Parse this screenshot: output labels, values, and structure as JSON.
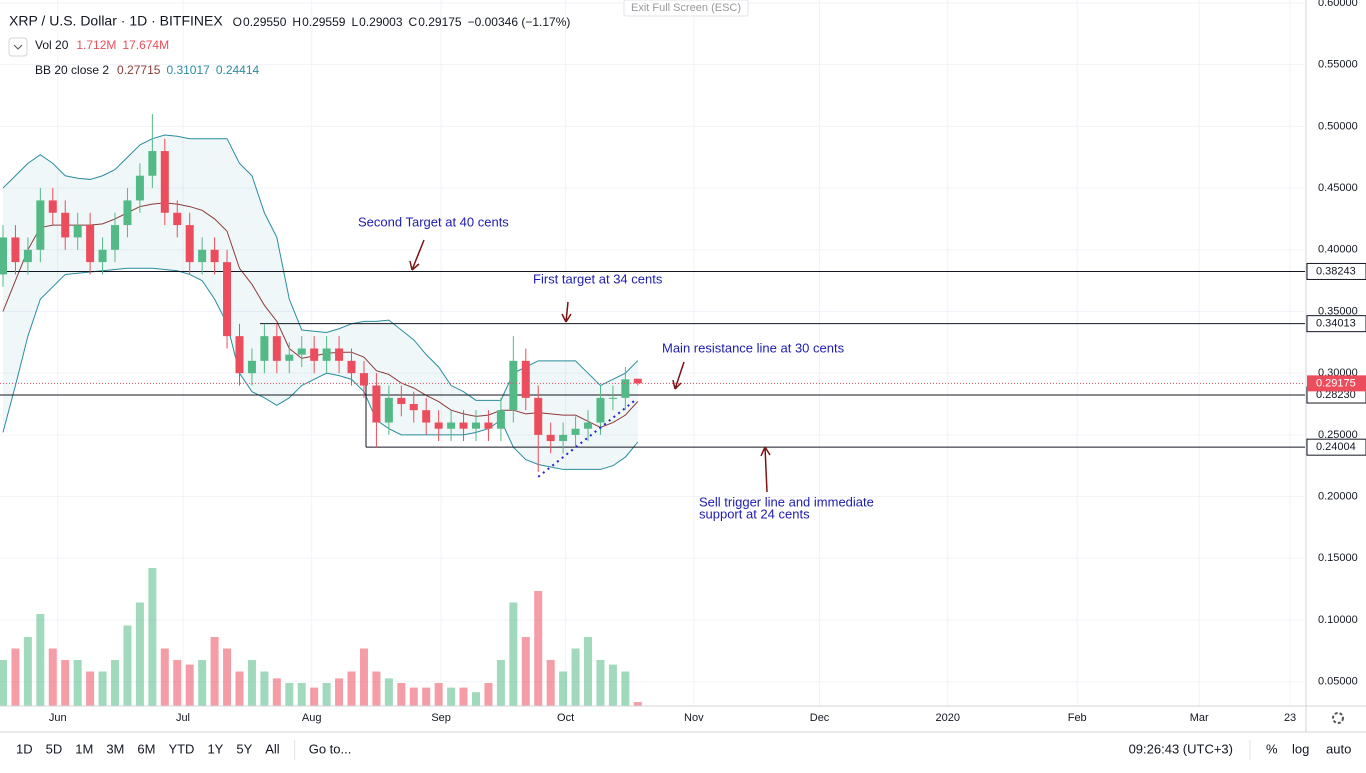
{
  "top_button": "Exit Full Screen (ESC)",
  "header": {
    "symbol": "XRP / U.S. Dollar · 1D · BITFINEX",
    "ohlc": [
      {
        "label": "O",
        "value": "0.29550"
      },
      {
        "label": "H",
        "value": "0.29559"
      },
      {
        "label": "L",
        "value": "0.29003"
      },
      {
        "label": "C",
        "value": "0.29175"
      }
    ],
    "change": "−0.00346 (−1.17%)"
  },
  "legend": {
    "vol": "Vol 20",
    "vol_last": "1.712M",
    "vol_ma": "17.674M",
    "bb": "BB 20 close 2"
  },
  "toolbar": {
    "ranges": [
      "1D",
      "5D",
      "1M",
      "3M",
      "6M",
      "YTD",
      "1Y",
      "5Y",
      "All"
    ],
    "goto": "Go to...",
    "clock": "09:26:43 (UTC+3)",
    "percent": "%",
    "log": "log",
    "auto": "auto"
  },
  "chart_data": {
    "type": "candlestick",
    "xlim": [
      -0.24,
      104.6
    ],
    "xticks": [
      {
        "value": 4.4,
        "label": "Jun"
      },
      {
        "value": 14.46,
        "label": "Jul"
      },
      {
        "value": 24.8,
        "label": "Aug"
      },
      {
        "value": 35.2,
        "label": "Sep"
      },
      {
        "value": 45.2,
        "label": "Oct"
      },
      {
        "value": 55.5,
        "label": "Nov"
      },
      {
        "value": 65.6,
        "label": "Dec"
      },
      {
        "value": 75.9,
        "label": "2020"
      },
      {
        "value": 86.3,
        "label": "Feb"
      },
      {
        "value": 96.1,
        "label": "Mar"
      },
      {
        "value": 103.4,
        "label": "23"
      }
    ],
    "ylim": [
      0.0303,
      0.6024
    ],
    "yticks": [
      {
        "value": 0.05,
        "label": "0.05000"
      },
      {
        "value": 0.1,
        "label": "0.10000"
      },
      {
        "value": 0.15,
        "label": "0.15000"
      },
      {
        "value": 0.2,
        "label": "0.20000"
      },
      {
        "value": 0.25,
        "label": "0.25000"
      },
      {
        "value": 0.3,
        "label": "0.30000"
      },
      {
        "value": 0.35,
        "label": "0.35000"
      },
      {
        "value": 0.4,
        "label": "0.40000"
      },
      {
        "value": 0.45,
        "label": "0.45000"
      },
      {
        "value": 0.5,
        "label": "0.50000"
      },
      {
        "value": 0.55,
        "label": "0.55000"
      },
      {
        "value": 0.6,
        "label": "0.60000"
      }
    ],
    "grid": true,
    "up_color": "#53b987",
    "down_color": "#eb4d5c",
    "candles": {
      "open": [
        0.38,
        0.41,
        0.39,
        0.4,
        0.44,
        0.43,
        0.41,
        0.42,
        0.39,
        0.4,
        0.42,
        0.44,
        0.46,
        0.48,
        0.43,
        0.42,
        0.39,
        0.4,
        0.39,
        0.33,
        0.3,
        0.31,
        0.33,
        0.31,
        0.315,
        0.32,
        0.31,
        0.32,
        0.31,
        0.3,
        0.29,
        0.26,
        0.28,
        0.275,
        0.27,
        0.26,
        0.255,
        0.26,
        0.255,
        0.26,
        0.255,
        0.27,
        0.31,
        0.28,
        0.25,
        0.245,
        0.25,
        0.255,
        0.26,
        0.28,
        0.28,
        0.2955
      ],
      "high": [
        0.42,
        0.42,
        0.41,
        0.45,
        0.45,
        0.44,
        0.43,
        0.43,
        0.41,
        0.43,
        0.45,
        0.47,
        0.51,
        0.49,
        0.44,
        0.43,
        0.41,
        0.41,
        0.4,
        0.34,
        0.32,
        0.34,
        0.34,
        0.325,
        0.33,
        0.33,
        0.33,
        0.33,
        0.32,
        0.31,
        0.3,
        0.29,
        0.29,
        0.285,
        0.28,
        0.27,
        0.27,
        0.27,
        0.27,
        0.27,
        0.28,
        0.33,
        0.32,
        0.29,
        0.26,
        0.26,
        0.265,
        0.27,
        0.29,
        0.29,
        0.305,
        0.29559
      ],
      "low": [
        0.37,
        0.38,
        0.38,
        0.39,
        0.42,
        0.4,
        0.4,
        0.38,
        0.38,
        0.39,
        0.41,
        0.43,
        0.45,
        0.42,
        0.41,
        0.38,
        0.38,
        0.38,
        0.32,
        0.29,
        0.29,
        0.3,
        0.3,
        0.3,
        0.305,
        0.3,
        0.3,
        0.3,
        0.29,
        0.28,
        0.24,
        0.25,
        0.265,
        0.26,
        0.25,
        0.245,
        0.245,
        0.245,
        0.245,
        0.245,
        0.245,
        0.26,
        0.27,
        0.22,
        0.235,
        0.235,
        0.24,
        0.245,
        0.25,
        0.27,
        0.27,
        0.29003
      ],
      "close": [
        0.41,
        0.39,
        0.4,
        0.44,
        0.43,
        0.41,
        0.42,
        0.39,
        0.4,
        0.42,
        0.44,
        0.46,
        0.48,
        0.43,
        0.42,
        0.39,
        0.4,
        0.39,
        0.33,
        0.3,
        0.31,
        0.33,
        0.31,
        0.315,
        0.32,
        0.31,
        0.32,
        0.31,
        0.3,
        0.29,
        0.26,
        0.28,
        0.275,
        0.27,
        0.26,
        0.255,
        0.26,
        0.255,
        0.26,
        0.255,
        0.27,
        0.31,
        0.28,
        0.25,
        0.245,
        0.25,
        0.255,
        0.26,
        0.28,
        0.28,
        0.295,
        0.29175
      ]
    },
    "volume": {
      "values": [
        20,
        25,
        30,
        40,
        25,
        20,
        20,
        15,
        15,
        20,
        35,
        45,
        60,
        25,
        20,
        18,
        20,
        30,
        25,
        15,
        20,
        15,
        12,
        10,
        10,
        8,
        10,
        12,
        15,
        25,
        15,
        12,
        10,
        8,
        8,
        10,
        8,
        8,
        6,
        10,
        20,
        45,
        30,
        50,
        20,
        15,
        25,
        30,
        20,
        18,
        15,
        1.712
      ]
    },
    "bollinger": {
      "color_band": "#2a8c9e",
      "color_basis": "#8c3a3a",
      "upper": [
        0.45,
        0.46,
        0.47,
        0.477,
        0.47,
        0.46,
        0.458,
        0.457,
        0.46,
        0.465,
        0.475,
        0.485,
        0.49,
        0.493,
        0.492,
        0.49,
        0.49,
        0.49,
        0.49,
        0.47,
        0.46,
        0.43,
        0.41,
        0.36,
        0.335,
        0.334,
        0.333,
        0.336,
        0.34,
        0.342,
        0.342,
        0.343,
        0.335,
        0.327,
        0.315,
        0.305,
        0.29,
        0.285,
        0.278,
        0.278,
        0.278,
        0.3,
        0.305,
        0.31,
        0.31,
        0.31,
        0.31,
        0.3,
        0.29,
        0.295,
        0.3,
        0.31017
      ],
      "basis": [
        0.35,
        0.375,
        0.4,
        0.418,
        0.42,
        0.42,
        0.42,
        0.42,
        0.421,
        0.425,
        0.43,
        0.435,
        0.437,
        0.438,
        0.437,
        0.435,
        0.432,
        0.425,
        0.415,
        0.385,
        0.372,
        0.355,
        0.342,
        0.32,
        0.312,
        0.314,
        0.316,
        0.317,
        0.317,
        0.313,
        0.302,
        0.299,
        0.292,
        0.288,
        0.282,
        0.277,
        0.27,
        0.267,
        0.265,
        0.266,
        0.27,
        0.27,
        0.267,
        0.268,
        0.267,
        0.266,
        0.266,
        0.261,
        0.256,
        0.26,
        0.266,
        0.27715
      ],
      "lower": [
        0.252,
        0.29,
        0.33,
        0.36,
        0.37,
        0.38,
        0.381,
        0.382,
        0.383,
        0.384,
        0.385,
        0.385,
        0.385,
        0.384,
        0.383,
        0.38,
        0.375,
        0.36,
        0.34,
        0.3,
        0.285,
        0.28,
        0.274,
        0.28,
        0.29,
        0.295,
        0.3,
        0.298,
        0.295,
        0.285,
        0.262,
        0.255,
        0.25,
        0.25,
        0.25,
        0.25,
        0.25,
        0.25,
        0.252,
        0.255,
        0.262,
        0.24,
        0.23,
        0.226,
        0.224,
        0.222,
        0.222,
        0.222,
        0.222,
        0.225,
        0.232,
        0.24414
      ]
    },
    "levels": [
      0.38243,
      0.34013,
      {
        "value": 0.2823,
        "label": "0.28230"
      },
      0.24004
    ],
    "trendline": {
      "x": [
        43,
        50.9
      ],
      "y": [
        0.216,
        0.279
      ]
    },
    "annotations": [
      {
        "lines": [
          "Second Target at 40 cents"
        ]
      },
      {
        "lines": [
          "First target at 34 cents"
        ]
      },
      {
        "lines": [
          "Main resistance line at 30 cents"
        ]
      },
      {
        "lines": [
          "Sell trigger line and immediate",
          "support at 24 cents"
        ]
      }
    ]
  }
}
